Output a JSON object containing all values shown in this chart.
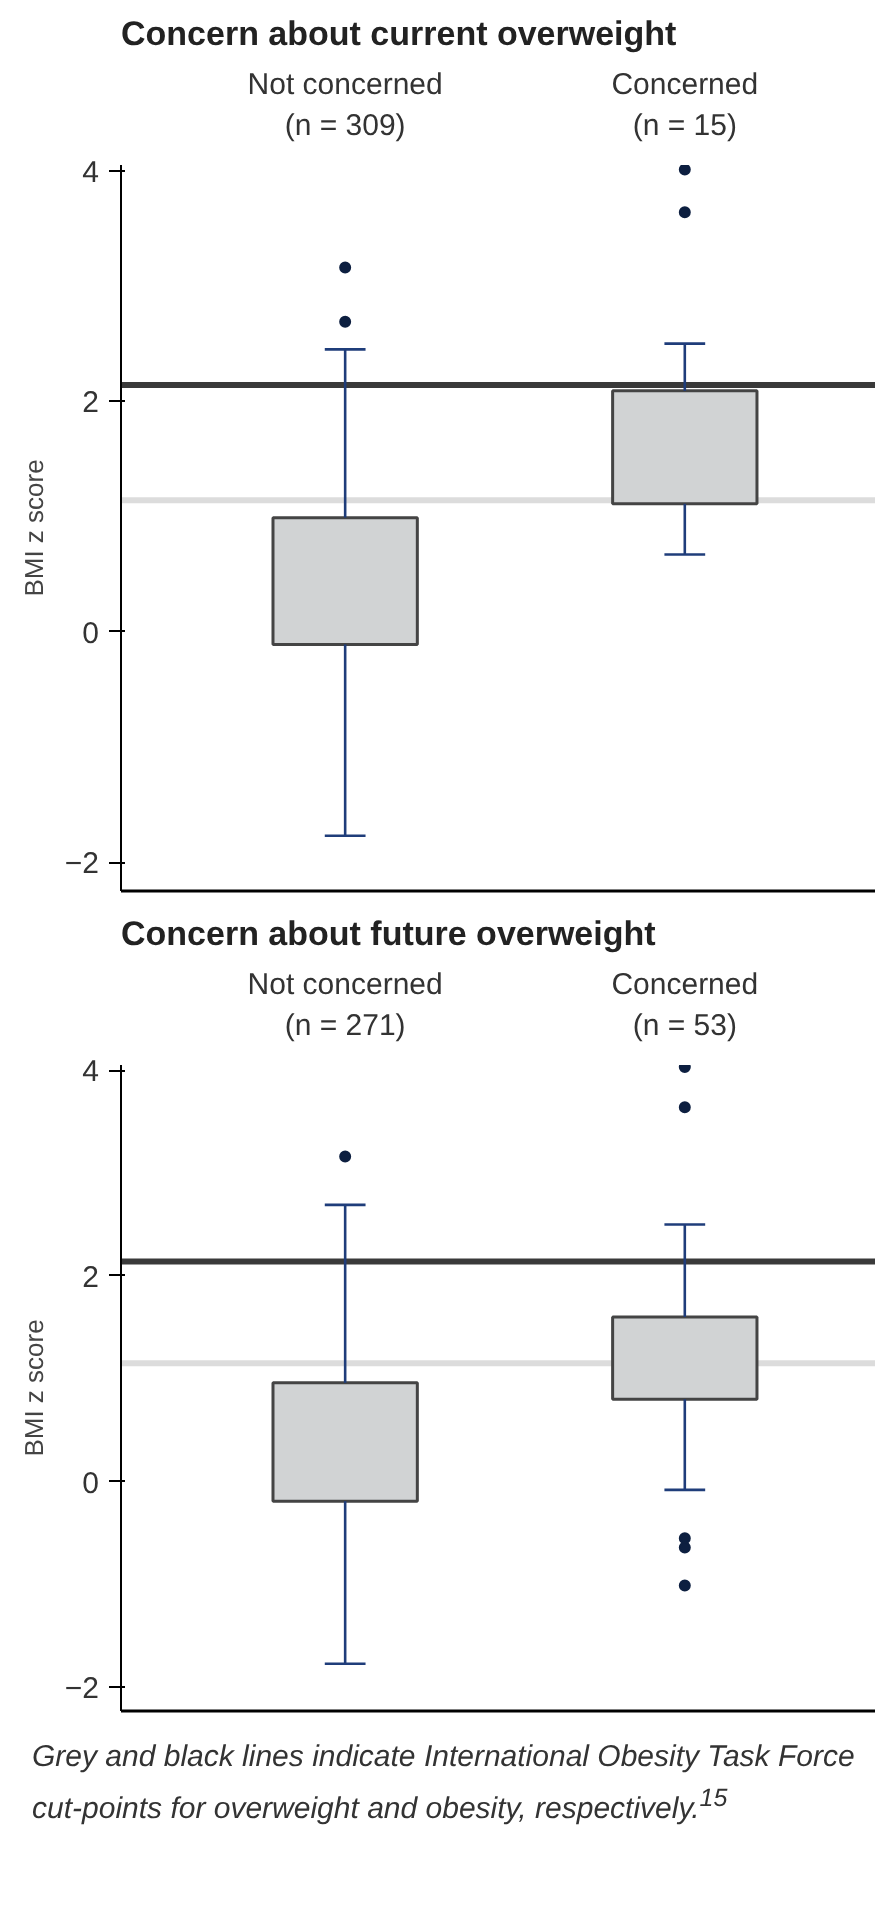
{
  "chart_data": [
    {
      "type": "box",
      "title": "Concern about current overweight",
      "ylabel": "BMI z score",
      "categories": [
        "Not concerned\n(n = 309)",
        "Concerned\n(n = 15)"
      ],
      "boxes": [
        {
          "low": -1.77,
          "q1": -0.11,
          "median": null,
          "q3": 0.99,
          "high": 2.45,
          "outliers": [
            3.16,
            2.69
          ]
        },
        {
          "low": 0.67,
          "q1": 1.11,
          "median": null,
          "q3": 2.09,
          "high": 2.5,
          "outliers": [
            4.01,
            3.64
          ]
        }
      ],
      "color": "#d1d3d4",
      "ylim": [
        -2.25,
        4.05
      ],
      "yticks": [
        {
          "value": -2,
          "label": "−2"
        },
        0,
        2,
        4
      ],
      "ref_lines": [
        {
          "axis": "y",
          "value": 2.14,
          "color": "#3a3a3a"
        },
        {
          "axis": "y",
          "value": 1.14,
          "color": "#dcdcdc"
        }
      ]
    },
    {
      "type": "box",
      "title": "Concern about future overweight",
      "ylabel": "BMI z score",
      "categories": [
        "Not concerned\n(n = 271)",
        "Concerned\n(n = 53)"
      ],
      "boxes": [
        {
          "low": -1.77,
          "q1": -0.19,
          "median": null,
          "q3": 0.96,
          "high": 2.69,
          "outliers": [
            3.16
          ]
        },
        {
          "low": -0.08,
          "q1": 0.8,
          "median": null,
          "q3": 1.6,
          "high": 2.5,
          "outliers": [
            4.03,
            3.64,
            -0.55,
            -0.64,
            -1.01
          ]
        }
      ],
      "color": "#d1d3d4",
      "ylim": [
        -2.23,
        4.05
      ],
      "yticks": [
        {
          "value": -2,
          "label": "−2"
        },
        0,
        2,
        4
      ],
      "ref_lines": [
        {
          "axis": "y",
          "value": 2.14,
          "color": "#3a3a3a"
        },
        {
          "axis": "y",
          "value": 1.15,
          "color": "#dcdcdc"
        }
      ],
      "annotations": [
        "Grey and black lines indicate International Obesity Task Force cut-points for overweight and obesity, respectively.$^{15}$"
      ]
    }
  ]
}
